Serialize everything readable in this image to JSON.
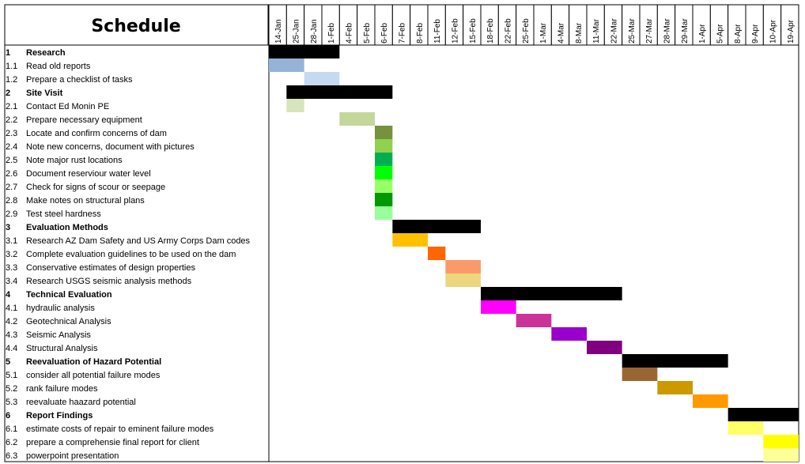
{
  "chart_data": {
    "type": "gantt",
    "title": "Schedule",
    "dates": [
      "14-Jan",
      "25-Jan",
      "28-Jan",
      "1-Feb",
      "4-Feb",
      "5-Feb",
      "6-Feb",
      "7-Feb",
      "8-Feb",
      "11-Feb",
      "12-Feb",
      "15-Feb",
      "18-Feb",
      "22-Feb",
      "25-Feb",
      "1-Mar",
      "4-Mar",
      "8-Mar",
      "11-Mar",
      "22-Mar",
      "25-Mar",
      "27-Mar",
      "28-Mar",
      "29-Mar",
      "1-Apr",
      "5-Apr",
      "8-Apr",
      "9-Apr",
      "10-Apr",
      "19-Apr"
    ],
    "tasks": [
      {
        "id": "1",
        "label": "Research",
        "summary": true,
        "start": "14-Jan",
        "end": "1-Feb",
        "color": "#000000"
      },
      {
        "id": "1.1",
        "label": "Read old reports",
        "summary": false,
        "start": "14-Jan",
        "end": "25-Jan",
        "color": "#95b3d7"
      },
      {
        "id": "1.2",
        "label": "Prepare a checklist of tasks",
        "summary": false,
        "start": "28-Jan",
        "end": "1-Feb",
        "color": "#c5d9f1"
      },
      {
        "id": "2",
        "label": "Site Visit",
        "summary": true,
        "start": "25-Jan",
        "end": "6-Feb",
        "color": "#000000"
      },
      {
        "id": "2.1",
        "label": "Contact Ed Monin PE",
        "summary": false,
        "start": "25-Jan",
        "end": "25-Jan",
        "color": "#d8e4bc"
      },
      {
        "id": "2.2",
        "label": "Prepare necessary equipment",
        "summary": false,
        "start": "4-Feb",
        "end": "5-Feb",
        "color": "#c4d79b"
      },
      {
        "id": "2.3",
        "label": "Locate and confirm concerns of dam",
        "summary": false,
        "start": "6-Feb",
        "end": "6-Feb",
        "color": "#76923c"
      },
      {
        "id": "2.4",
        "label": "Note new concerns, document with pictures",
        "summary": false,
        "start": "6-Feb",
        "end": "6-Feb",
        "color": "#92d050"
      },
      {
        "id": "2.5",
        "label": "Note major rust locations",
        "summary": false,
        "start": "6-Feb",
        "end": "6-Feb",
        "color": "#00b050"
      },
      {
        "id": "2.6",
        "label": "Document reserviour water level",
        "summary": false,
        "start": "6-Feb",
        "end": "6-Feb",
        "color": "#00ff00"
      },
      {
        "id": "2.7",
        "label": "Check for signs of scour or seepage",
        "summary": false,
        "start": "6-Feb",
        "end": "6-Feb",
        "color": "#99ff66"
      },
      {
        "id": "2.8",
        "label": "Make notes on structural plans",
        "summary": false,
        "start": "6-Feb",
        "end": "6-Feb",
        "color": "#009900"
      },
      {
        "id": "2.9",
        "label": "Test steel hardness",
        "summary": false,
        "start": "6-Feb",
        "end": "6-Feb",
        "color": "#99ff99"
      },
      {
        "id": "3",
        "label": "Evaluation Methods",
        "summary": true,
        "start": "7-Feb",
        "end": "15-Feb",
        "color": "#000000"
      },
      {
        "id": "3.1",
        "label": "Research AZ Dam Safety and US Army Corps Dam codes",
        "summary": false,
        "start": "7-Feb",
        "end": "8-Feb",
        "color": "#ffc000"
      },
      {
        "id": "3.2",
        "label": "Complete evaluation guidelines to be used on the dam",
        "summary": false,
        "start": "11-Feb",
        "end": "11-Feb",
        "color": "#ff6600"
      },
      {
        "id": "3.3",
        "label": "Conservative estimates of design properties",
        "summary": false,
        "start": "12-Feb",
        "end": "15-Feb",
        "color": "#fa9a6a"
      },
      {
        "id": "3.4",
        "label": "Research USGS seismic analysis methods",
        "summary": false,
        "start": "12-Feb",
        "end": "15-Feb",
        "color": "#ecd77e"
      },
      {
        "id": "4",
        "label": "Technical Evaluation",
        "summary": true,
        "start": "18-Feb",
        "end": "22-Mar",
        "color": "#000000"
      },
      {
        "id": "4.1",
        "label": "hydraulic analysis",
        "summary": false,
        "start": "18-Feb",
        "end": "22-Feb",
        "color": "#ff00ff"
      },
      {
        "id": "4.2",
        "label": "Geotechnical Analysis",
        "summary": false,
        "start": "25-Feb",
        "end": "1-Mar",
        "color": "#cc3399"
      },
      {
        "id": "4.3",
        "label": "Seismic Analysis",
        "summary": false,
        "start": "4-Mar",
        "end": "8-Mar",
        "color": "#9900cc"
      },
      {
        "id": "4.4",
        "label": "Structural Analysis",
        "summary": false,
        "start": "11-Mar",
        "end": "22-Mar",
        "color": "#800080"
      },
      {
        "id": "5",
        "label": "Reevaluation of Hazard Potential",
        "summary": true,
        "start": "25-Mar",
        "end": "5-Apr",
        "color": "#000000"
      },
      {
        "id": "5.1",
        "label": "consider all potential failure modes",
        "summary": false,
        "start": "25-Mar",
        "end": "27-Mar",
        "color": "#996633"
      },
      {
        "id": "5.2",
        "label": "rank failure modes",
        "summary": false,
        "start": "28-Mar",
        "end": "29-Mar",
        "color": "#cc9900"
      },
      {
        "id": "5.3",
        "label": "reevaluate haazard potential",
        "summary": false,
        "start": "1-Apr",
        "end": "5-Apr",
        "color": "#ff9900"
      },
      {
        "id": "6",
        "label": "Report Findings",
        "summary": true,
        "start": "8-Apr",
        "end": "19-Apr",
        "color": "#000000"
      },
      {
        "id": "6.1",
        "label": "estimate costs of repair to eminent failure modes",
        "summary": false,
        "start": "8-Apr",
        "end": "9-Apr",
        "color": "#ffff66"
      },
      {
        "id": "6.2",
        "label": "prepare a comprehensie final report for client",
        "summary": false,
        "start": "10-Apr",
        "end": "19-Apr",
        "color": "#ffff00"
      },
      {
        "id": "6.3",
        "label": "powerpoint presentation",
        "summary": false,
        "start": "10-Apr",
        "end": "19-Apr",
        "color": "#ffff99"
      }
    ]
  }
}
